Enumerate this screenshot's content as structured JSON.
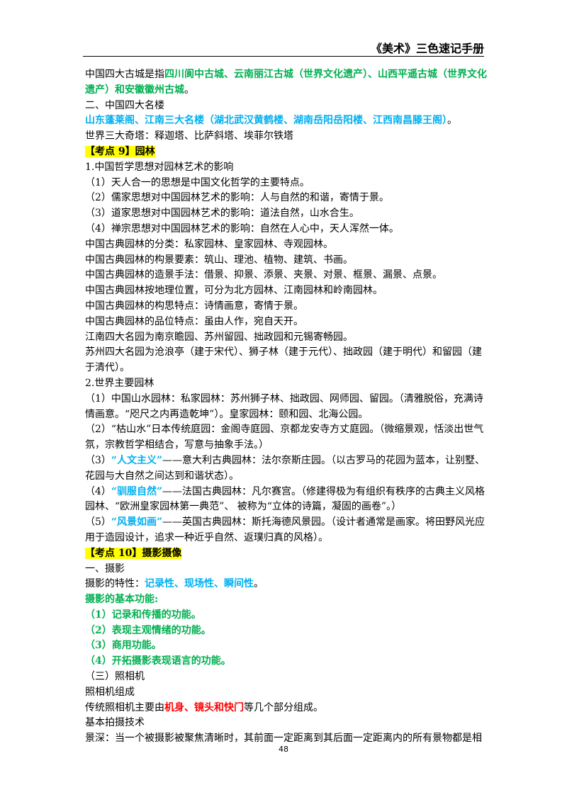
{
  "header": {
    "title": "《美术》三色速记手册"
  },
  "page_number": "48",
  "lines": [
    {
      "kind": "wrap",
      "segments": [
        {
          "text": "中国四大古城是指"
        },
        {
          "text": "四川阆中古城、云南丽江古城（世界文化遗产）、山西平遥古城（世界文化遗产）和安徽徽州古城",
          "style": "green"
        },
        {
          "text": "。"
        }
      ]
    },
    {
      "segments": [
        {
          "text": "二、中国四大名楼"
        }
      ]
    },
    {
      "segments": [
        {
          "text": "山东蓬莱阁、江南三大名楼（湖北武汉黄鹤楼、湖南岳阳岳阳楼、江西南昌滕王阁）",
          "style": "blue"
        },
        {
          "text": "。"
        }
      ]
    },
    {
      "segments": [
        {
          "text": "世界三大奇塔：释迦塔、比萨斜塔、埃菲尔铁塔"
        }
      ]
    },
    {
      "segments": [
        {
          "text": "【考点 9】园林",
          "style": "hl"
        }
      ]
    },
    {
      "segments": [
        {
          "text": "1.中国哲学思想对园林艺术的影响"
        }
      ]
    },
    {
      "segments": [
        {
          "text": "（1）天人合一的思想是中国文化哲学的主要特点。"
        }
      ]
    },
    {
      "segments": [
        {
          "text": "（2）儒家思想对中国园林艺术的影响：人与自然的和谐，寄情于景。"
        }
      ]
    },
    {
      "segments": [
        {
          "text": "（3）道家思想对中国园林艺术的影响：道法自然，山水合生。"
        }
      ]
    },
    {
      "segments": [
        {
          "text": "（4）禅宗思想对中国园林艺术的影响：自然在人心中，天人浑然一体。"
        }
      ]
    },
    {
      "segments": [
        {
          "text": "中国古典园林的分类：私家园林、皇家园林、寺观园林。"
        }
      ]
    },
    {
      "segments": [
        {
          "text": "中国古典园林的构景要素：筑山、理池、植物、建筑、书画。"
        }
      ]
    },
    {
      "segments": [
        {
          "text": "中国古典园林的造景手法：借景、抑景、添景、夹景、对景、框景、漏景、点景。"
        }
      ]
    },
    {
      "segments": [
        {
          "text": "中国古典园林按地理位置，可分为北方园林、江南园林和岭南园林。"
        }
      ]
    },
    {
      "segments": [
        {
          "text": "中国古典园林的构思特点：诗情画意，寄情于景。"
        }
      ]
    },
    {
      "segments": [
        {
          "text": "中国古典园林的品位特点：虽由人作，宛自天开。"
        }
      ]
    },
    {
      "segments": [
        {
          "text": "江南四大名园为南京瞻园、苏州留园、拙政园和元锡寄畅园。"
        }
      ]
    },
    {
      "kind": "wrap",
      "segments": [
        {
          "text": "苏州四大名园为沧浪亭（建于宋代）、狮子林（建于元代）、拙政园（建于明代）和留园（建于清代）。"
        }
      ]
    },
    {
      "segments": [
        {
          "text": "2.世界主要园林"
        }
      ]
    },
    {
      "kind": "wrap",
      "segments": [
        {
          "text": "（1）中国山水园林：私家园林：苏州狮子林、拙政园、网师园、留园。（清雅脱俗，充满诗情画意。“咫尺之内再造乾坤”）。皇家园林：颐和园、北海公园。"
        }
      ]
    },
    {
      "kind": "wrap",
      "segments": [
        {
          "text": "（2）“枯山水”日本传统庭园：金阁寺庭园、京都龙安寺方丈庭园。（微缩景观，恬淡出世气氛，宗教哲学相结合，写意与抽象手法。）"
        }
      ]
    },
    {
      "kind": "wrap",
      "segments": [
        {
          "text": "（3）"
        },
        {
          "text": "“人文主义”",
          "style": "blue"
        },
        {
          "text": "——意大利古典园林：法尔奈斯庄园。（以古罗马的花园为蓝本，让别墅、花园与大自然之间达到和谐状态）。"
        }
      ]
    },
    {
      "kind": "wrap",
      "segments": [
        {
          "text": "（4）"
        },
        {
          "text": "“驯服自然”",
          "style": "blue"
        },
        {
          "text": "——法国古典园林：凡尔赛宫。（修建得极为有组织有秩序的古典主义风格园林、“欧洲皇家园林第一典范”、 被称为“立体的诗篇，凝固的画卷”。）"
        }
      ]
    },
    {
      "kind": "wrap",
      "segments": [
        {
          "text": "（5）"
        },
        {
          "text": "“风景如画”",
          "style": "blue"
        },
        {
          "text": "——英国古典园林：斯托海德风景园。（设计者通常是画家。将田野风光应用于造园设计，追求一种近乎自然、返璞归真的风格）。"
        }
      ]
    },
    {
      "segments": [
        {
          "text": "【考点 10】摄影摄像",
          "style": "hl"
        }
      ]
    },
    {
      "segments": [
        {
          "text": "一、摄影"
        }
      ]
    },
    {
      "segments": [
        {
          "text": "摄影的特性："
        },
        {
          "text": "记录性、现场性、瞬间性",
          "style": "blue"
        },
        {
          "text": "。"
        }
      ]
    },
    {
      "segments": [
        {
          "text": "摄影的基本功能:",
          "style": "green"
        }
      ]
    },
    {
      "segments": [
        {
          "text": "（1）记录和传播的功能。",
          "style": "green"
        }
      ]
    },
    {
      "segments": [
        {
          "text": "（2）表现主观情绪的功能。",
          "style": "green"
        }
      ]
    },
    {
      "segments": [
        {
          "text": "（3）商用功能。",
          "style": "green"
        }
      ]
    },
    {
      "segments": [
        {
          "text": "（4）开拓摄影表现语言的功能。",
          "style": "green"
        }
      ]
    },
    {
      "segments": [
        {
          "text": "（三）照相机"
        }
      ]
    },
    {
      "segments": [
        {
          "text": "照相机组成"
        }
      ]
    },
    {
      "segments": [
        {
          "text": "传统照相机主要由"
        },
        {
          "text": "机身、镜头和快门",
          "style": "red"
        },
        {
          "text": "等几个部分组成。"
        }
      ]
    },
    {
      "segments": [
        {
          "text": "基本拍摄技术"
        }
      ]
    },
    {
      "segments": [
        {
          "text": "景深：当一个被摄影被聚焦清晰时，其前面一定距离到其后面一定距离内的所有景物都是相"
        }
      ]
    }
  ]
}
